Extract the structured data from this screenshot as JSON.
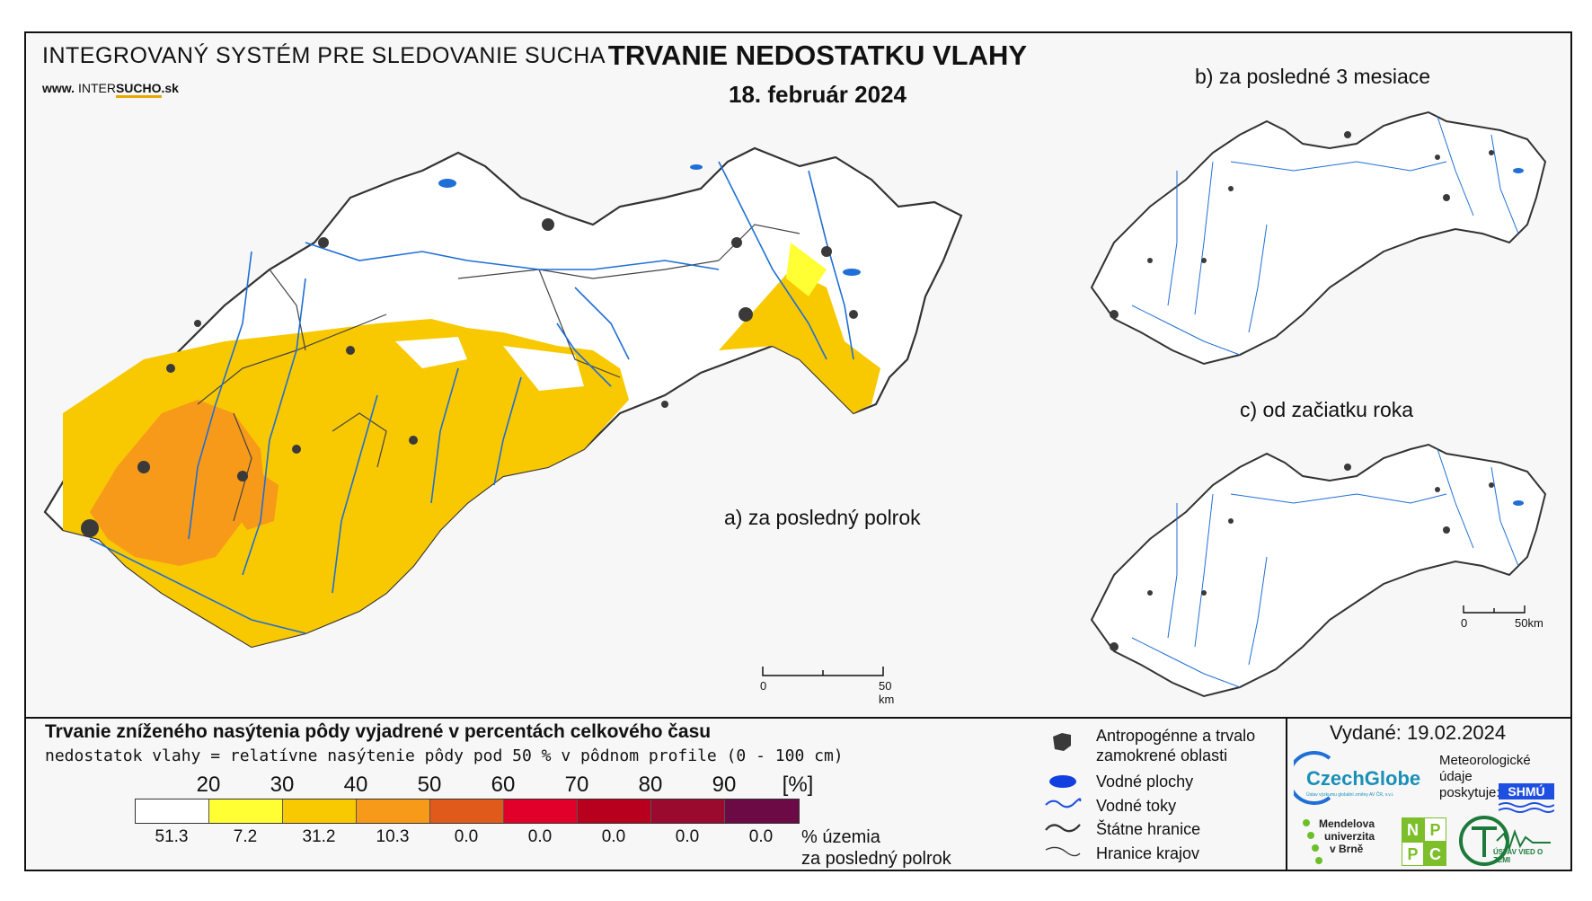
{
  "header": {
    "system_title": "INTEGROVANÝ SYSTÉM PRE SLEDOVANIE SUCHA",
    "website_prefix": "www.",
    "website_a": "INTER",
    "website_b": "SUCHO",
    "website_c": ".sk",
    "title": "TRVANIE NEDOSTATKU VLAHY",
    "date": "18. február 2024"
  },
  "maps": {
    "a_label": "a) za posledný polrok",
    "b_label": "b) za posledné 3 mesiace",
    "c_label": "c) od začiatku roka",
    "scale_main": {
      "zero": "0",
      "end": "50 km"
    },
    "scale_small": {
      "zero": "0",
      "end": "50km"
    }
  },
  "legend": {
    "title": "Trvanie zníženého nasýtenia pôdy vyjadrené v percentách celkového času",
    "subtitle": "nedostatok vlahy = relatívne nasýtenie pôdy pod 50 % v pôdnom profile (0 - 100 cm)",
    "ticks": [
      "20",
      "30",
      "40",
      "50",
      "60",
      "70",
      "80",
      "90",
      "[%]"
    ],
    "classes": [
      {
        "color": "#ffffff",
        "share": "51.3"
      },
      {
        "color": "#ffff33",
        "share": "7.2"
      },
      {
        "color": "#f8c800",
        "share": "31.2"
      },
      {
        "color": "#f79a1a",
        "share": "10.3"
      },
      {
        "color": "#e05a1c",
        "share": "0.0"
      },
      {
        "color": "#e0002a",
        "share": "0.0"
      },
      {
        "color": "#b8001e",
        "share": "0.0"
      },
      {
        "color": "#9a0a2e",
        "share": "0.0"
      },
      {
        "color": "#6c0a45",
        "share": "0.0"
      }
    ],
    "share_label_1": "% územia",
    "share_label_2": "za posledný polrok"
  },
  "symbols": {
    "urban_1": "Antropogénne a trvalo",
    "urban_2": "zamokrené oblasti",
    "water_bodies": "Vodné plochy",
    "rivers": "Vodné toky",
    "state_border": "Štátne hranice",
    "region_border": "Hranice krajov"
  },
  "credits": {
    "issued": "Vydané: 19.02.2024",
    "czechglobe": "CzechGlobe",
    "czechglobe_sub": "Ústav výzkumu globální změny AV ČR, v.v.i.",
    "meteo_1": "Meteorologické",
    "meteo_2": "údaje",
    "meteo_3": "poskytuje:",
    "shmu": "SHMÚ",
    "mendel_1": "Mendelova",
    "mendel_2": "univerzita",
    "mendel_3": "v Brně",
    "nppc": [
      "N",
      "P",
      "P",
      "C"
    ],
    "ustav": "ÚSTAV VIED O ZEMI"
  },
  "colors": {
    "river": "#1f6fd6",
    "urban": "#3a3a3a",
    "border": "#333333"
  }
}
